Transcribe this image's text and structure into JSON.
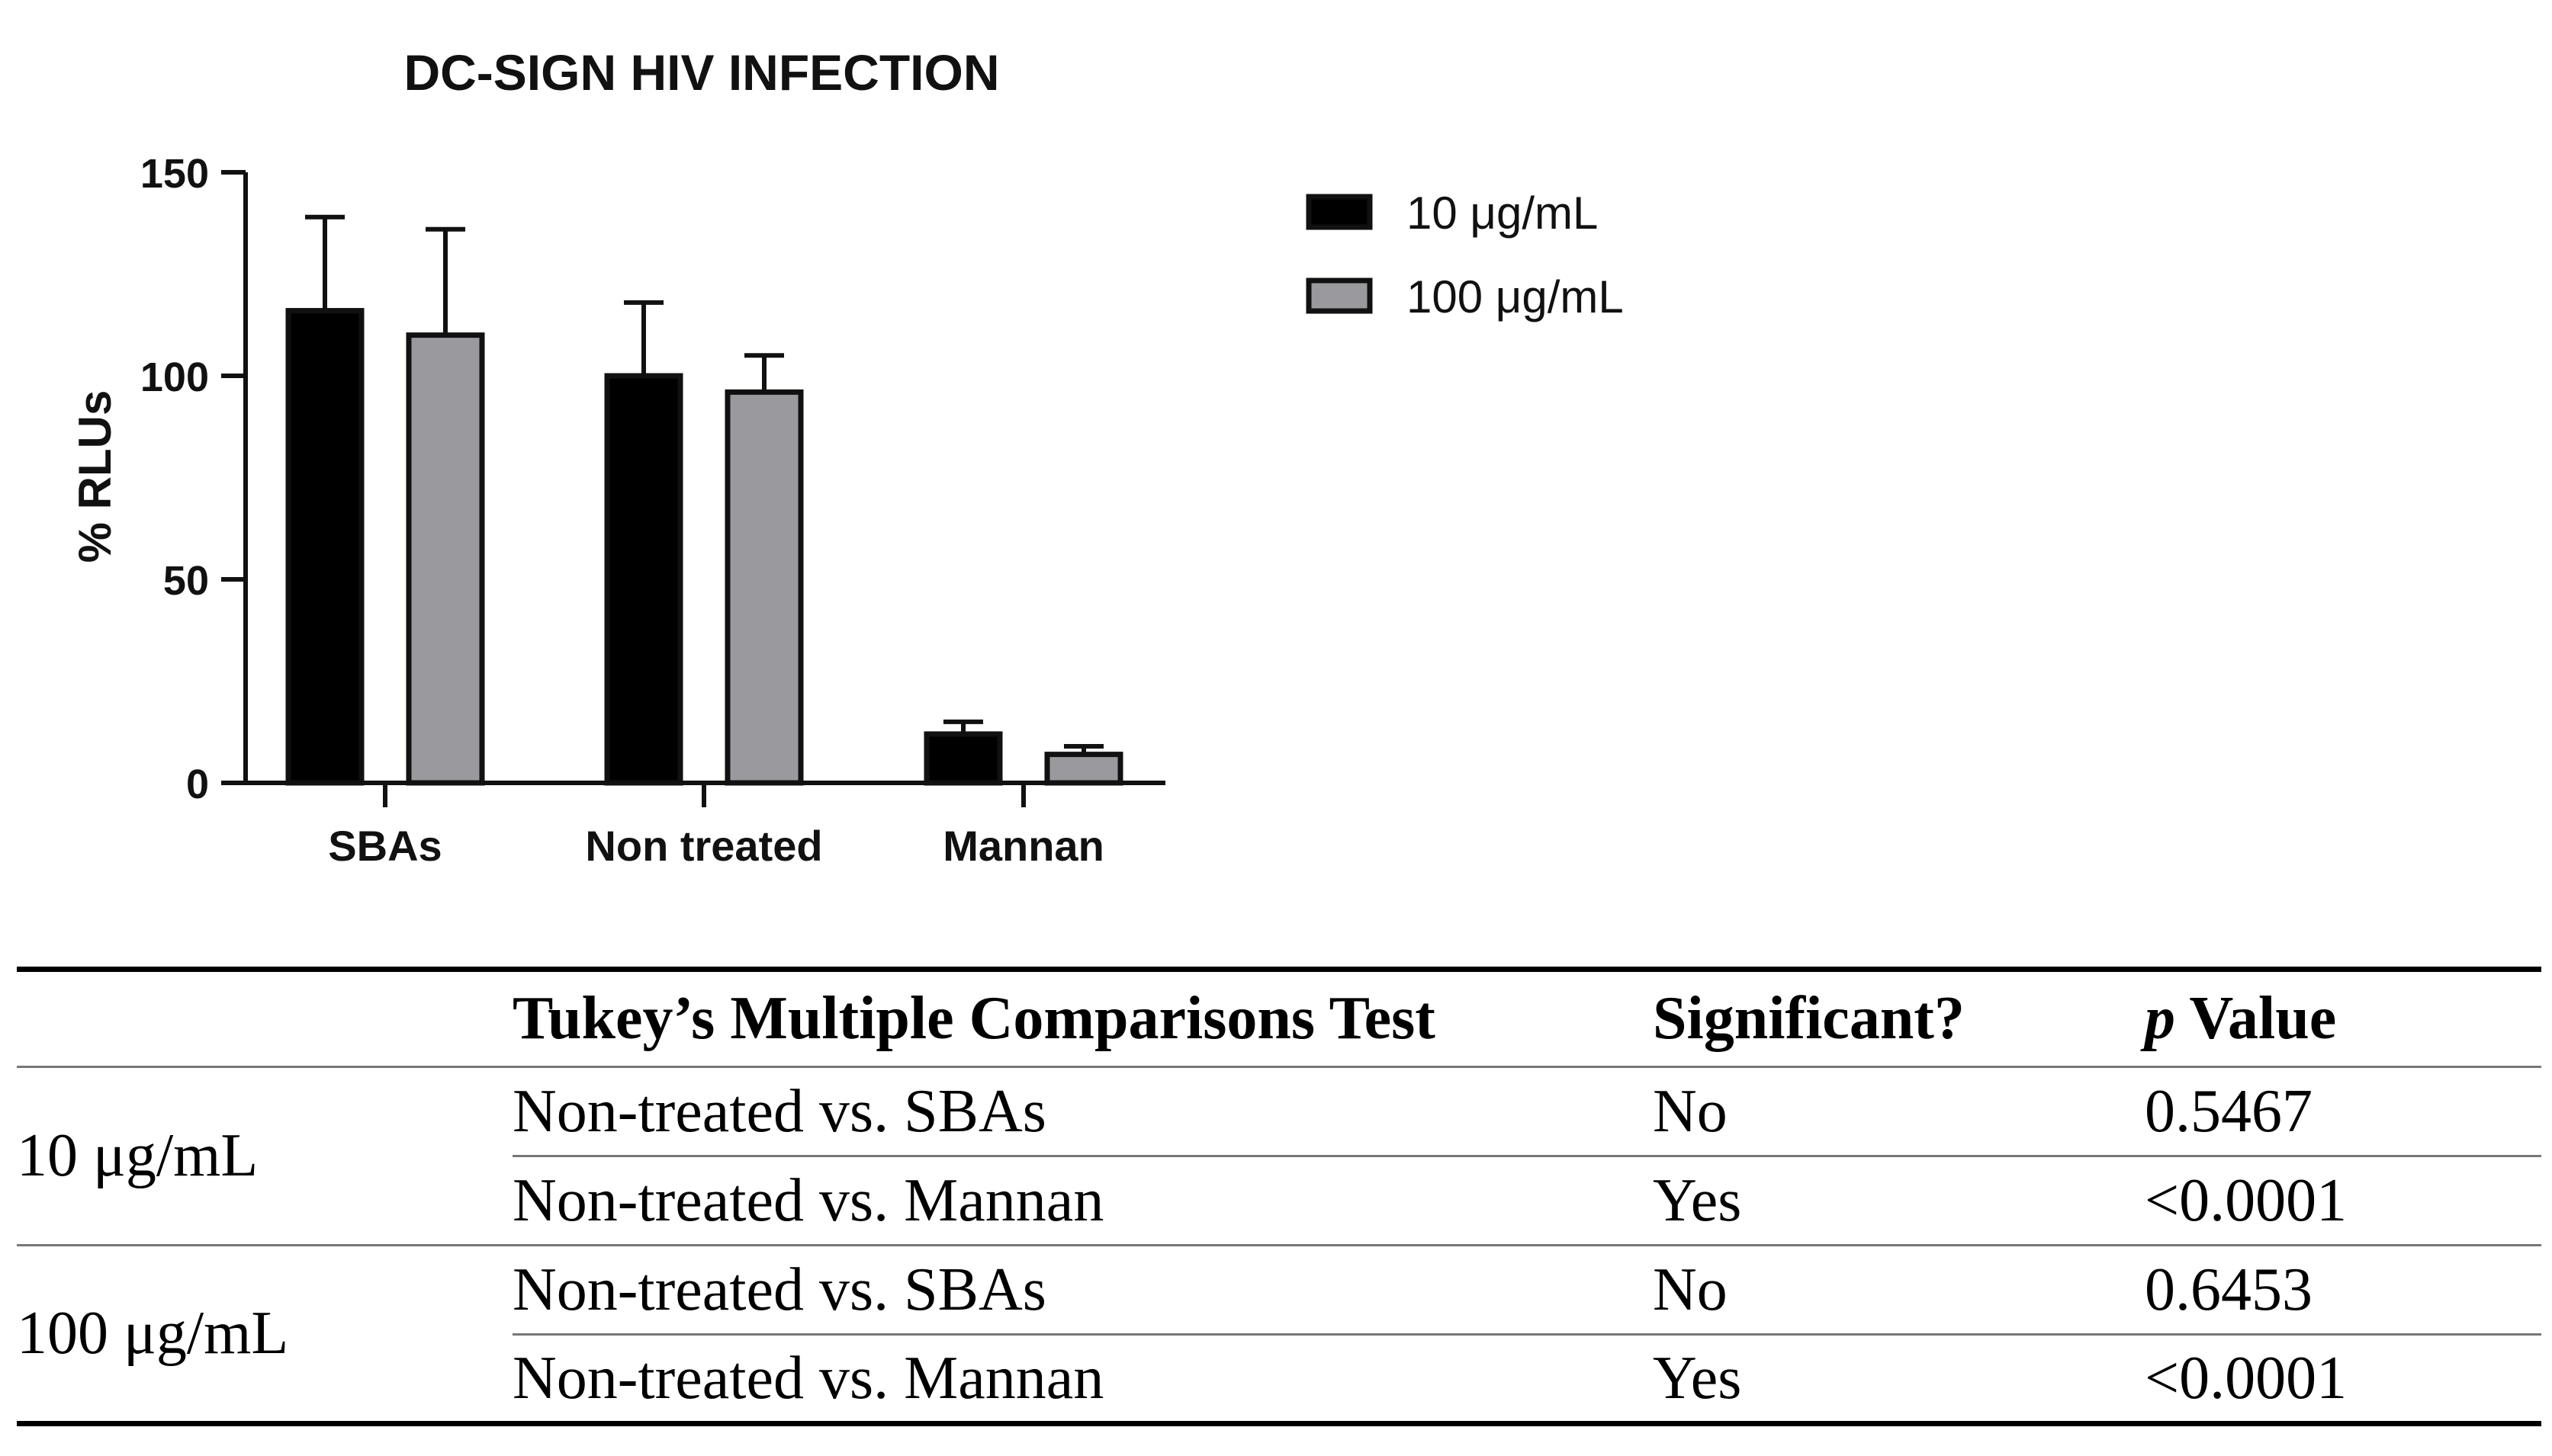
{
  "chart_data": {
    "type": "bar",
    "title": "DC-SIGN HIV INFECTION",
    "xlabel": "",
    "ylabel": "% RLUs",
    "ylim": [
      0,
      150
    ],
    "yticks": [
      0,
      50,
      100,
      150
    ],
    "categories": [
      "SBAs",
      "Non treated",
      "Mannan"
    ],
    "series": [
      {
        "name": "10 μg/mL",
        "color": "#000000",
        "values": [
          116,
          100,
          12
        ],
        "errors": [
          23,
          18,
          3
        ]
      },
      {
        "name": "100 μg/mL",
        "color": "#9a9a9e",
        "values": [
          110,
          96,
          7
        ],
        "errors": [
          26,
          9,
          2
        ]
      }
    ],
    "legend_position": "top-right",
    "grid": false
  },
  "table": {
    "headers": {
      "group": "",
      "test": "Tukey’s Multiple Comparisons Test",
      "significant": "Significant?",
      "p_symbol": "p",
      "p_rest": " Value"
    },
    "groups": [
      {
        "label": "10 μg/mL",
        "rows": [
          {
            "test": "Non-treated vs. SBAs",
            "significant": "No",
            "p": "0.5467"
          },
          {
            "test": "Non-treated vs. Mannan",
            "significant": "Yes",
            "p": "<0.0001"
          }
        ]
      },
      {
        "label": "100 μg/mL",
        "rows": [
          {
            "test": "Non-treated vs. SBAs",
            "significant": "No",
            "p": "0.6453"
          },
          {
            "test": "Non-treated vs. Mannan",
            "significant": "Yes",
            "p": "<0.0001"
          }
        ]
      }
    ]
  }
}
